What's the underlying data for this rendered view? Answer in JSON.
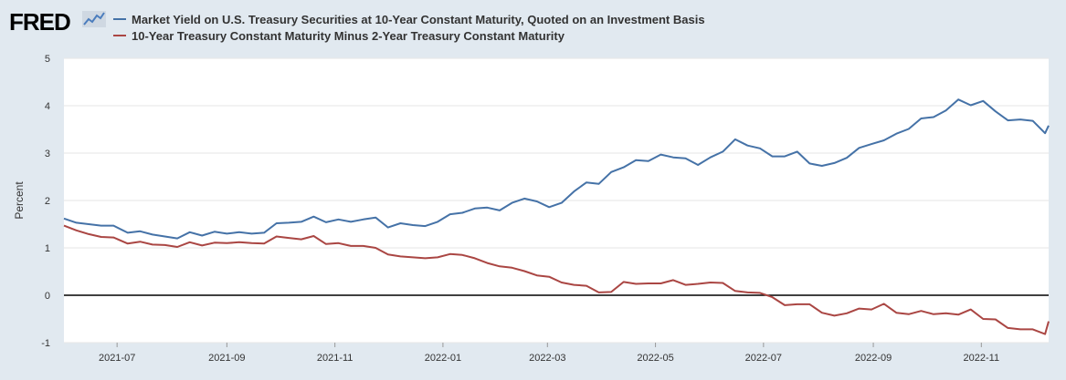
{
  "brand": {
    "logo_text": "FRED",
    "logo_icon": "fred-graph-icon"
  },
  "colors": {
    "series_blue": "#4572a7",
    "series_red": "#aa4643",
    "plot_bg": "#ffffff",
    "page_bg": "#e1e9f0"
  },
  "chart_data": {
    "type": "line",
    "title": "",
    "xlabel": "",
    "ylabel": "Percent",
    "ylim": [
      -1,
      5
    ],
    "yticks": [
      -1,
      0,
      1,
      2,
      3,
      4,
      5
    ],
    "xlim": [
      "2021-06-01",
      "2022-12-09"
    ],
    "xticks": [
      "2021-07",
      "2021-09",
      "2021-11",
      "2022-01",
      "2022-03",
      "2022-05",
      "2022-07",
      "2022-09",
      "2022-11"
    ],
    "grid": true,
    "legend_position": "top-left",
    "reference_line": {
      "y": 0,
      "color": "#000000"
    },
    "series": [
      {
        "name": "Market Yield on U.S. Treasury Securities at 10-Year Constant Maturity, Quoted on an Investment Basis",
        "color": "#4572a7",
        "points": [
          [
            "2021-06-01",
            1.62
          ],
          [
            "2021-06-08",
            1.53
          ],
          [
            "2021-06-15",
            1.5
          ],
          [
            "2021-06-22",
            1.47
          ],
          [
            "2021-06-29",
            1.47
          ],
          [
            "2021-07-07",
            1.32
          ],
          [
            "2021-07-14",
            1.35
          ],
          [
            "2021-07-21",
            1.28
          ],
          [
            "2021-07-28",
            1.24
          ],
          [
            "2021-08-04",
            1.2
          ],
          [
            "2021-08-11",
            1.33
          ],
          [
            "2021-08-18",
            1.26
          ],
          [
            "2021-08-25",
            1.34
          ],
          [
            "2021-09-01",
            1.3
          ],
          [
            "2021-09-08",
            1.33
          ],
          [
            "2021-09-15",
            1.3
          ],
          [
            "2021-09-22",
            1.32
          ],
          [
            "2021-09-29",
            1.52
          ],
          [
            "2021-10-06",
            1.53
          ],
          [
            "2021-10-13",
            1.55
          ],
          [
            "2021-10-20",
            1.66
          ],
          [
            "2021-10-27",
            1.54
          ],
          [
            "2021-11-03",
            1.6
          ],
          [
            "2021-11-10",
            1.55
          ],
          [
            "2021-11-17",
            1.6
          ],
          [
            "2021-11-24",
            1.64
          ],
          [
            "2021-12-01",
            1.43
          ],
          [
            "2021-12-08",
            1.52
          ],
          [
            "2021-12-15",
            1.48
          ],
          [
            "2021-12-22",
            1.46
          ],
          [
            "2021-12-29",
            1.55
          ],
          [
            "2022-01-05",
            1.71
          ],
          [
            "2022-01-12",
            1.74
          ],
          [
            "2022-01-19",
            1.83
          ],
          [
            "2022-01-26",
            1.85
          ],
          [
            "2022-02-02",
            1.79
          ],
          [
            "2022-02-09",
            1.95
          ],
          [
            "2022-02-16",
            2.04
          ],
          [
            "2022-02-23",
            1.98
          ],
          [
            "2022-03-02",
            1.86
          ],
          [
            "2022-03-09",
            1.95
          ],
          [
            "2022-03-16",
            2.19
          ],
          [
            "2022-03-23",
            2.38
          ],
          [
            "2022-03-30",
            2.35
          ],
          [
            "2022-04-06",
            2.6
          ],
          [
            "2022-04-13",
            2.7
          ],
          [
            "2022-04-20",
            2.85
          ],
          [
            "2022-04-27",
            2.83
          ],
          [
            "2022-05-04",
            2.97
          ],
          [
            "2022-05-11",
            2.91
          ],
          [
            "2022-05-18",
            2.89
          ],
          [
            "2022-05-25",
            2.75
          ],
          [
            "2022-06-01",
            2.91
          ],
          [
            "2022-06-08",
            3.03
          ],
          [
            "2022-06-15",
            3.29
          ],
          [
            "2022-06-22",
            3.16
          ],
          [
            "2022-06-29",
            3.1
          ],
          [
            "2022-07-06",
            2.93
          ],
          [
            "2022-07-13",
            2.93
          ],
          [
            "2022-07-20",
            3.03
          ],
          [
            "2022-07-27",
            2.78
          ],
          [
            "2022-08-03",
            2.73
          ],
          [
            "2022-08-10",
            2.79
          ],
          [
            "2022-08-17",
            2.9
          ],
          [
            "2022-08-24",
            3.11
          ],
          [
            "2022-08-31",
            3.19
          ],
          [
            "2022-09-07",
            3.27
          ],
          [
            "2022-09-14",
            3.41
          ],
          [
            "2022-09-21",
            3.51
          ],
          [
            "2022-09-28",
            3.73
          ],
          [
            "2022-10-05",
            3.76
          ],
          [
            "2022-10-12",
            3.9
          ],
          [
            "2022-10-19",
            4.13
          ],
          [
            "2022-10-26",
            4.01
          ],
          [
            "2022-11-02",
            4.1
          ],
          [
            "2022-11-09",
            3.88
          ],
          [
            "2022-11-16",
            3.69
          ],
          [
            "2022-11-23",
            3.71
          ],
          [
            "2022-11-30",
            3.68
          ],
          [
            "2022-12-07",
            3.42
          ],
          [
            "2022-12-09",
            3.58
          ]
        ]
      },
      {
        "name": "10-Year Treasury Constant Maturity Minus 2-Year Treasury Constant Maturity",
        "color": "#aa4643",
        "points": [
          [
            "2021-06-01",
            1.47
          ],
          [
            "2021-06-08",
            1.37
          ],
          [
            "2021-06-15",
            1.29
          ],
          [
            "2021-06-22",
            1.23
          ],
          [
            "2021-06-29",
            1.22
          ],
          [
            "2021-07-07",
            1.09
          ],
          [
            "2021-07-14",
            1.13
          ],
          [
            "2021-07-21",
            1.07
          ],
          [
            "2021-07-28",
            1.06
          ],
          [
            "2021-08-04",
            1.02
          ],
          [
            "2021-08-11",
            1.12
          ],
          [
            "2021-08-18",
            1.05
          ],
          [
            "2021-08-25",
            1.11
          ],
          [
            "2021-09-01",
            1.1
          ],
          [
            "2021-09-08",
            1.12
          ],
          [
            "2021-09-15",
            1.1
          ],
          [
            "2021-09-22",
            1.09
          ],
          [
            "2021-09-29",
            1.24
          ],
          [
            "2021-10-06",
            1.21
          ],
          [
            "2021-10-13",
            1.18
          ],
          [
            "2021-10-20",
            1.25
          ],
          [
            "2021-10-27",
            1.08
          ],
          [
            "2021-11-03",
            1.1
          ],
          [
            "2021-11-10",
            1.04
          ],
          [
            "2021-11-17",
            1.04
          ],
          [
            "2021-11-24",
            1.0
          ],
          [
            "2021-12-01",
            0.86
          ],
          [
            "2021-12-08",
            0.82
          ],
          [
            "2021-12-15",
            0.8
          ],
          [
            "2021-12-22",
            0.78
          ],
          [
            "2021-12-29",
            0.8
          ],
          [
            "2022-01-05",
            0.87
          ],
          [
            "2022-01-12",
            0.85
          ],
          [
            "2022-01-19",
            0.78
          ],
          [
            "2022-01-26",
            0.68
          ],
          [
            "2022-02-02",
            0.61
          ],
          [
            "2022-02-09",
            0.58
          ],
          [
            "2022-02-16",
            0.51
          ],
          [
            "2022-02-23",
            0.42
          ],
          [
            "2022-03-02",
            0.39
          ],
          [
            "2022-03-09",
            0.27
          ],
          [
            "2022-03-16",
            0.22
          ],
          [
            "2022-03-23",
            0.2
          ],
          [
            "2022-03-30",
            0.06
          ],
          [
            "2022-04-06",
            0.07
          ],
          [
            "2022-04-13",
            0.28
          ],
          [
            "2022-04-20",
            0.24
          ],
          [
            "2022-04-27",
            0.25
          ],
          [
            "2022-05-04",
            0.25
          ],
          [
            "2022-05-11",
            0.32
          ],
          [
            "2022-05-18",
            0.22
          ],
          [
            "2022-05-25",
            0.24
          ],
          [
            "2022-06-01",
            0.27
          ],
          [
            "2022-06-08",
            0.26
          ],
          [
            "2022-06-15",
            0.09
          ],
          [
            "2022-06-22",
            0.06
          ],
          [
            "2022-06-29",
            0.05
          ],
          [
            "2022-07-06",
            -0.04
          ],
          [
            "2022-07-13",
            -0.21
          ],
          [
            "2022-07-20",
            -0.19
          ],
          [
            "2022-07-27",
            -0.19
          ],
          [
            "2022-08-03",
            -0.37
          ],
          [
            "2022-08-10",
            -0.43
          ],
          [
            "2022-08-17",
            -0.38
          ],
          [
            "2022-08-24",
            -0.28
          ],
          [
            "2022-08-31",
            -0.3
          ],
          [
            "2022-09-07",
            -0.18
          ],
          [
            "2022-09-14",
            -0.37
          ],
          [
            "2022-09-21",
            -0.4
          ],
          [
            "2022-09-28",
            -0.33
          ],
          [
            "2022-10-05",
            -0.4
          ],
          [
            "2022-10-12",
            -0.38
          ],
          [
            "2022-10-19",
            -0.41
          ],
          [
            "2022-10-26",
            -0.3
          ],
          [
            "2022-11-02",
            -0.5
          ],
          [
            "2022-11-09",
            -0.51
          ],
          [
            "2022-11-16",
            -0.69
          ],
          [
            "2022-11-23",
            -0.72
          ],
          [
            "2022-11-30",
            -0.72
          ],
          [
            "2022-12-07",
            -0.82
          ],
          [
            "2022-12-09",
            -0.55
          ]
        ]
      }
    ]
  }
}
